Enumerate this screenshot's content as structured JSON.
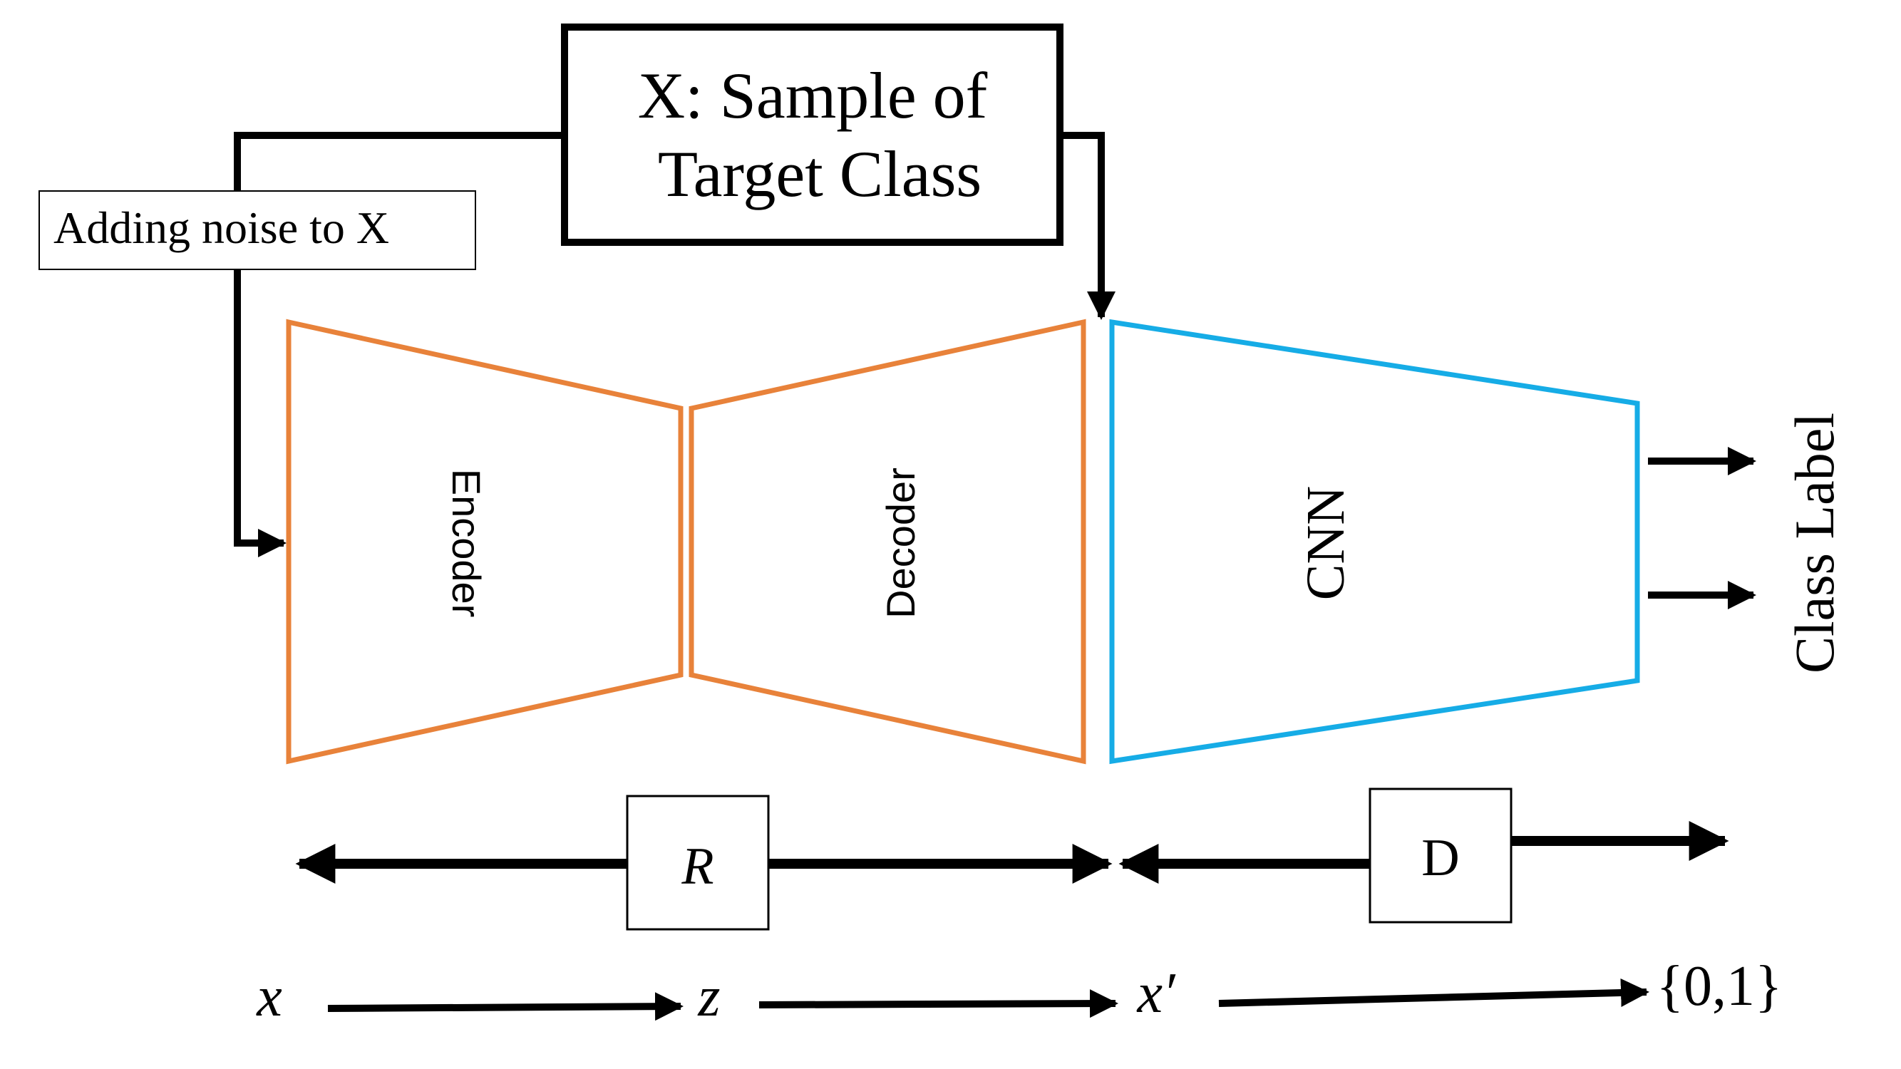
{
  "nodes": {
    "sample": {
      "line1": "X: Sample of",
      "line2": "Target Class"
    },
    "noise": {
      "label": "Adding noise to X"
    },
    "encoder": {
      "label": "Encoder"
    },
    "decoder": {
      "label": "Decoder"
    },
    "cnn": {
      "label": "CNN"
    },
    "class_label": {
      "label": "Class Label"
    },
    "r_box": {
      "label": "R"
    },
    "d_box": {
      "label": "D"
    }
  },
  "flow": {
    "x": "x",
    "z": "z",
    "x_prime": "x′",
    "output": "{0,1}"
  },
  "colors": {
    "autoencoder": "#E8823A",
    "cnn": "#16ACE6",
    "line": "#000000"
  }
}
